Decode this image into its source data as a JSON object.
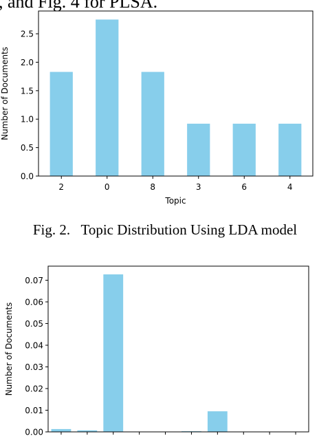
{
  "page": {
    "top_text": ", and Fig. 4 for PLSA.",
    "caption": "Fig. 2.   Topic Distribution Using LDA model"
  },
  "chart_data": [
    {
      "type": "bar",
      "title": "",
      "xlabel": "Topic",
      "ylabel": "Number of Documents",
      "categories": [
        "2",
        "0",
        "8",
        "3",
        "6",
        "4"
      ],
      "values": [
        1.83,
        2.75,
        1.83,
        0.92,
        0.92,
        0.92
      ],
      "ylim": [
        0,
        2.9
      ],
      "yticks": [
        0.0,
        0.5,
        1.0,
        1.5,
        2.0,
        2.5
      ],
      "ytick_labels": [
        "0.0",
        "0.5",
        "1.0",
        "1.5",
        "2.0",
        "2.5"
      ],
      "color": "#87ceeb",
      "grid": false
    },
    {
      "type": "bar",
      "title": "",
      "xlabel": "",
      "ylabel": "Number of Documents",
      "categories": [
        "",
        "",
        "",
        "",
        "",
        "",
        "",
        "",
        "",
        ""
      ],
      "values": [
        0.0013,
        0.0007,
        0.0727,
        0,
        0,
        0.0003,
        0.0095,
        0,
        0,
        0
      ],
      "ylim": [
        0,
        0.0765
      ],
      "yticks": [
        0.0,
        0.01,
        0.02,
        0.03,
        0.04,
        0.05,
        0.06,
        0.07
      ],
      "ytick_labels": [
        "0.00",
        "0.01",
        "0.02",
        "0.03",
        "0.04",
        "0.05",
        "0.06",
        "0.07"
      ],
      "color": "#87ceeb",
      "grid": false
    }
  ]
}
